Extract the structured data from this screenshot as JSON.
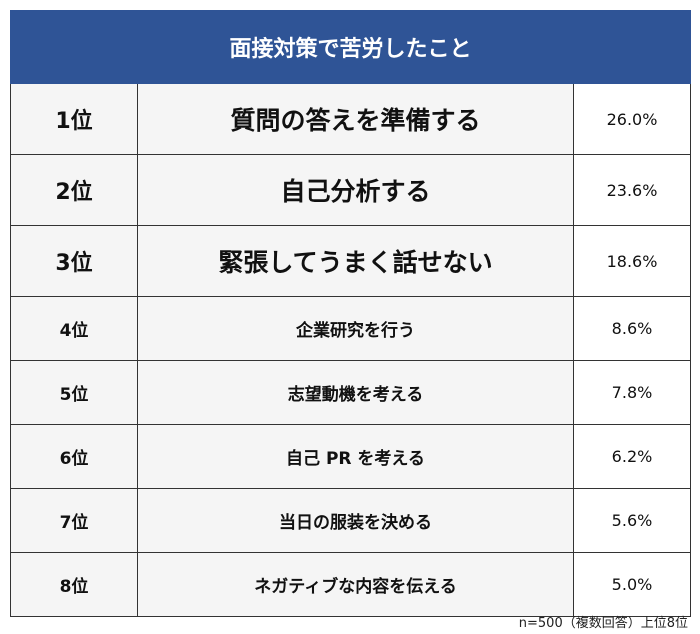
{
  "header": {
    "title": "面接対策で苦労したこと"
  },
  "table": {
    "rows": [
      [
        "1位",
        "質問の答えを準備する",
        "26.0%"
      ],
      [
        "2位",
        "自己分析する",
        "23.6%"
      ],
      [
        "3位",
        "緊張してうまく話せない",
        "18.6%"
      ],
      [
        "4位",
        "企業研究を行う",
        "8.6%"
      ],
      [
        "5位",
        "志望動機を考える",
        "7.8%"
      ],
      [
        "6位",
        "自己 PR を考える",
        "6.2%"
      ],
      [
        "7位",
        "当日の服装を決める",
        "5.6%"
      ],
      [
        "8位",
        "ネガティブな内容を伝える",
        "5.0%"
      ]
    ]
  },
  "footnote": "n=500（複数回答）上位8位"
}
